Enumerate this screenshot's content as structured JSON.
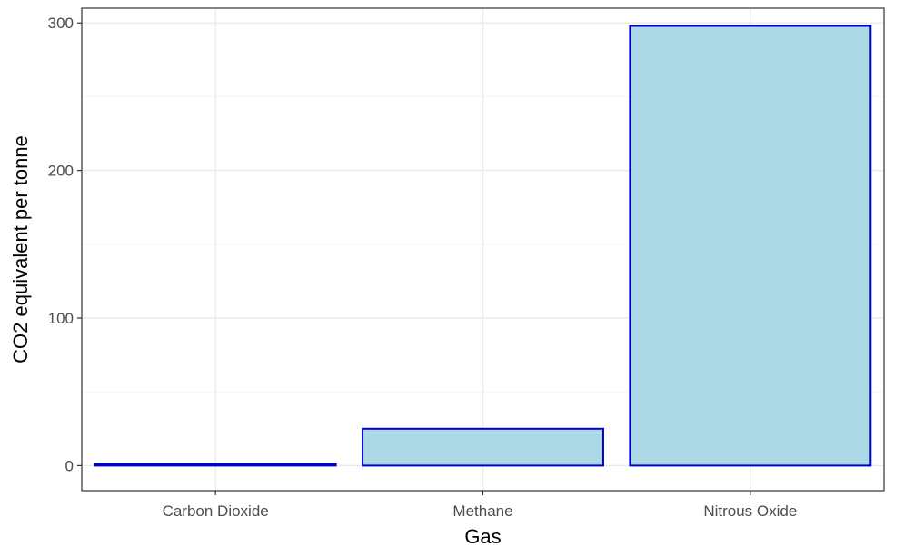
{
  "chart_data": {
    "type": "bar",
    "categories": [
      "Carbon Dioxide",
      "Methane",
      "Nitrous Oxide"
    ],
    "values": [
      1,
      25,
      298
    ],
    "xlabel": "Gas",
    "ylabel": "CO2 equivalent per tonne",
    "ylim": [
      -17,
      310
    ],
    "yticks": [
      0,
      100,
      200,
      300
    ],
    "grid": true,
    "colors": {
      "bar_fill": "#add8e6",
      "bar_outline": "#0000cd",
      "grid_major": "#ebebeb",
      "grid_minor": "#f5f5f5",
      "panel_border": "#333333"
    }
  }
}
